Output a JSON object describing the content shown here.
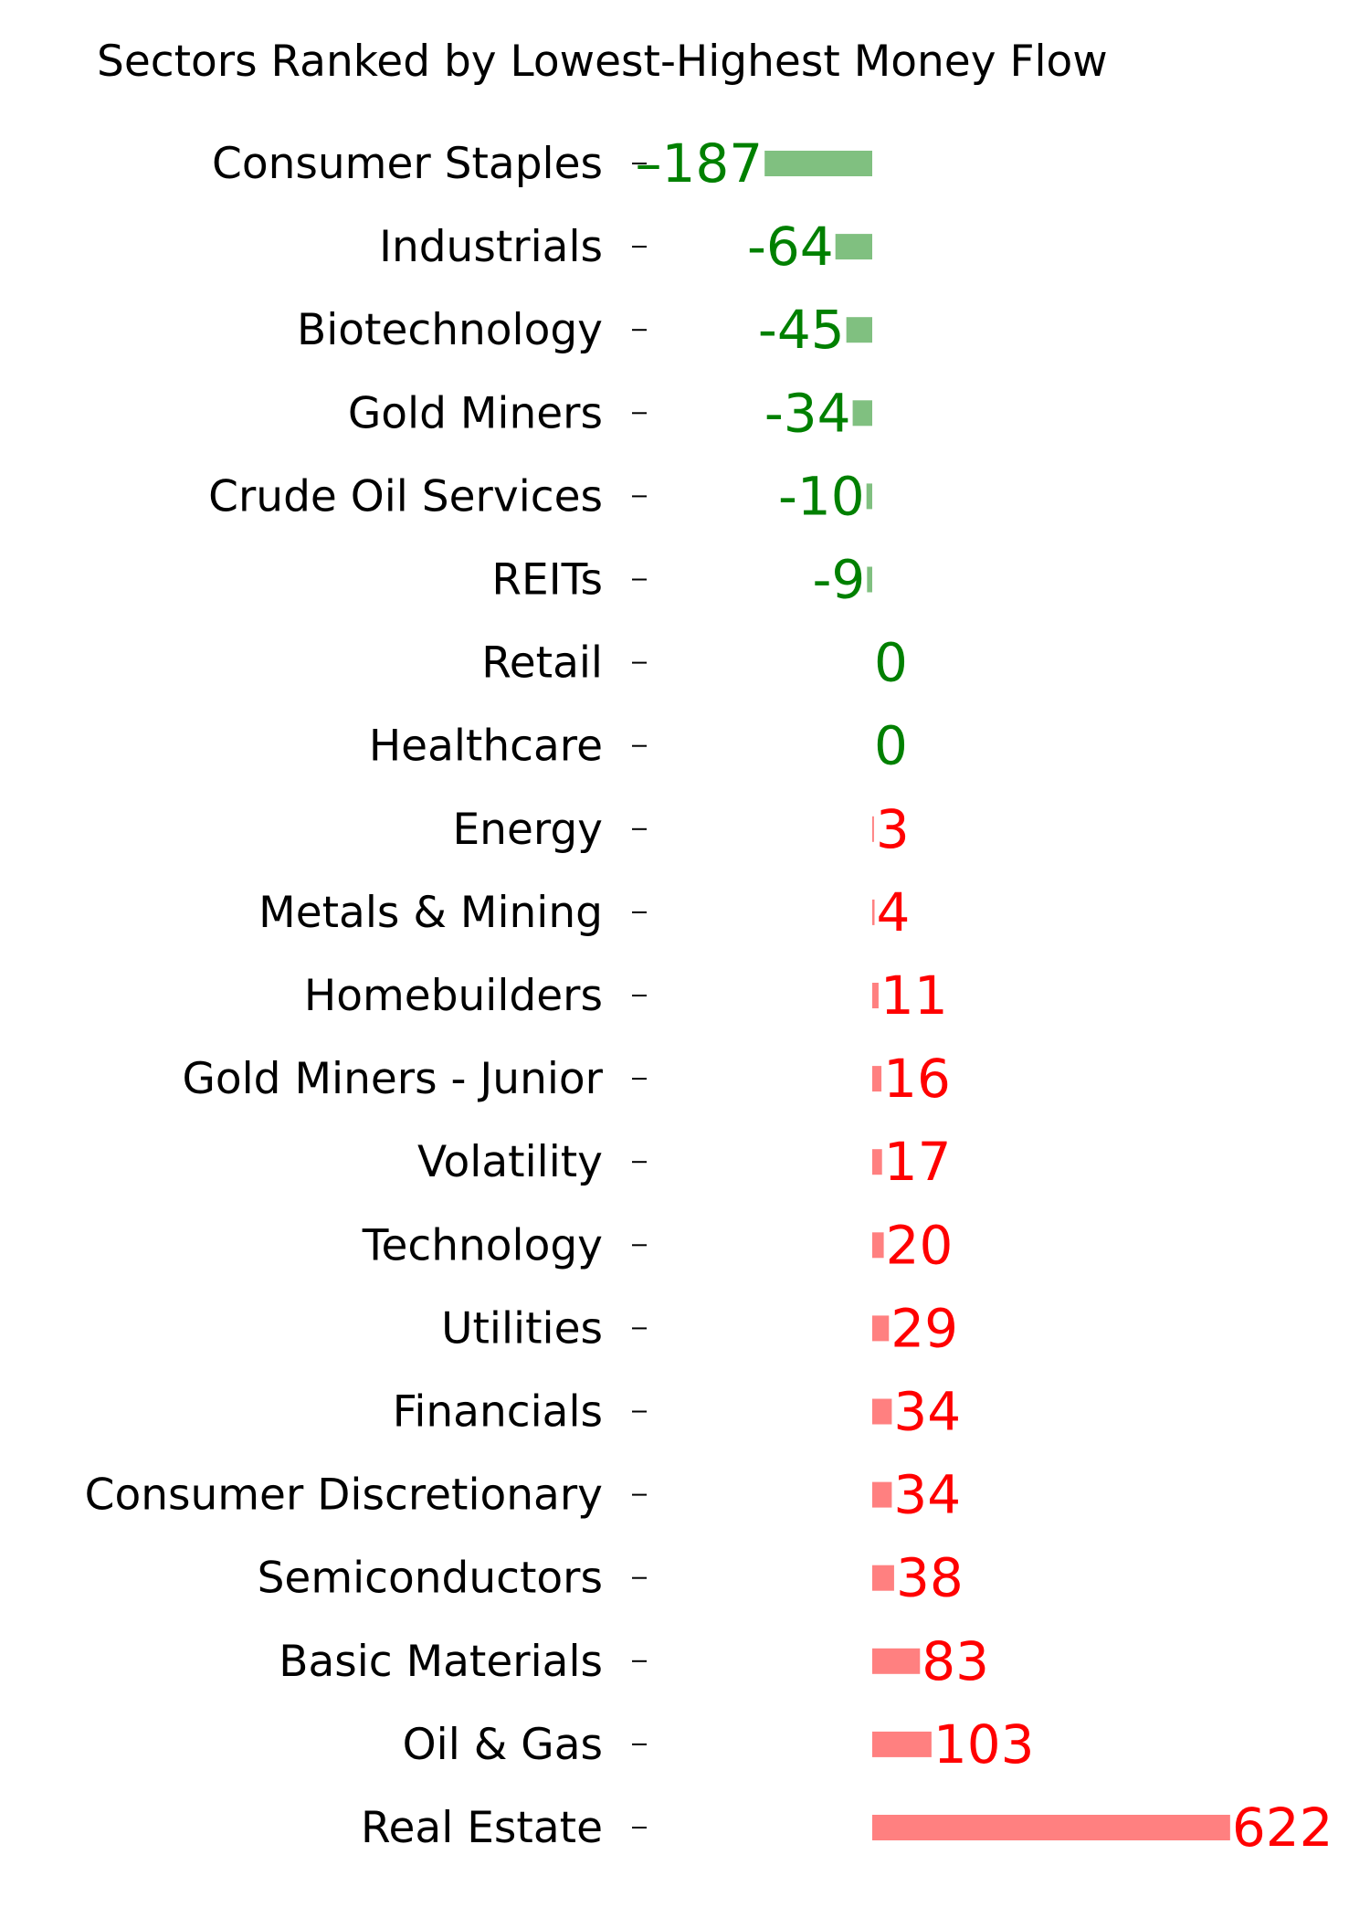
{
  "chart_data": {
    "type": "bar",
    "orientation": "horizontal",
    "title": "Sectors Ranked by Lowest-Highest Money Flow",
    "xlabel": "",
    "ylabel": "",
    "grid": false,
    "legend": "none",
    "categories": [
      "Consumer Staples",
      "Industrials",
      "Biotechnology",
      "Gold Miners",
      "Crude Oil Services",
      "REITs",
      "Retail",
      "Healthcare",
      "Energy",
      "Metals & Mining",
      "Homebuilders",
      "Gold Miners - Junior",
      "Volatility",
      "Technology",
      "Utilities",
      "Financials",
      "Consumer Discretionary",
      "Semiconductors",
      "Basic Materials",
      "Oil & Gas",
      "Real Estate"
    ],
    "values": [
      -187,
      -64,
      -45,
      -34,
      -10,
      -9,
      0,
      0,
      3,
      4,
      11,
      16,
      17,
      20,
      29,
      34,
      34,
      38,
      83,
      103,
      622
    ],
    "value_labels": [
      "–187",
      "-64",
      "-45",
      "-34",
      "-10",
      "-9",
      "0",
      "0",
      "3",
      "4",
      "11",
      "16",
      "17",
      "20",
      "29",
      "34",
      "34",
      "38",
      "83",
      "103",
      "622"
    ],
    "colors": {
      "negative_bar": "#80c080",
      "positive_bar": "#ff8080",
      "negative_text": "#008000",
      "positive_text": "#ff0000",
      "category_text": "#000000"
    }
  }
}
